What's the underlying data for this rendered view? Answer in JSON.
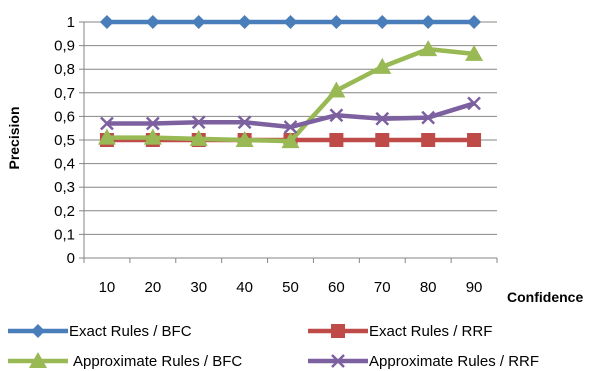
{
  "chart_data": {
    "type": "line",
    "title": "",
    "xlabel": "Confidence",
    "ylabel": "Precision",
    "x": [
      10,
      20,
      30,
      40,
      50,
      60,
      70,
      80,
      90
    ],
    "x_tick_labels": [
      "10",
      "20",
      "30",
      "40",
      "50",
      "60",
      "70",
      "80",
      "90"
    ],
    "ylim": [
      0,
      1
    ],
    "y_tick_labels": [
      "0",
      "0,1",
      "0,2",
      "0,3",
      "0,4",
      "0,5",
      "0,6",
      "0,7",
      "0,8",
      "0,9",
      "1"
    ],
    "grid": "horizontal",
    "legend_position": "bottom",
    "series": [
      {
        "name": "Exact Rules / BFC",
        "marker": "diamond",
        "color": "#4A7EBB",
        "values": [
          1,
          1,
          1,
          1,
          1,
          1,
          1,
          1,
          1
        ]
      },
      {
        "name": "Exact Rules / RRF",
        "marker": "square",
        "color": "#BE4B48",
        "values": [
          0.5,
          0.5,
          0.5,
          0.5,
          0.5,
          0.5,
          0.5,
          0.5,
          0.5
        ]
      },
      {
        "name": "Approximate Rules / BFC",
        "marker": "triangle",
        "color": "#98B954",
        "values": [
          0.51,
          0.51,
          0.505,
          0.5,
          0.495,
          0.71,
          0.81,
          0.885,
          0.865
        ]
      },
      {
        "name": "Approximate Rules / RRF",
        "marker": "x",
        "color": "#7D60A0",
        "values": [
          0.57,
          0.57,
          0.575,
          0.575,
          0.555,
          0.605,
          0.59,
          0.595,
          0.655
        ]
      }
    ]
  }
}
